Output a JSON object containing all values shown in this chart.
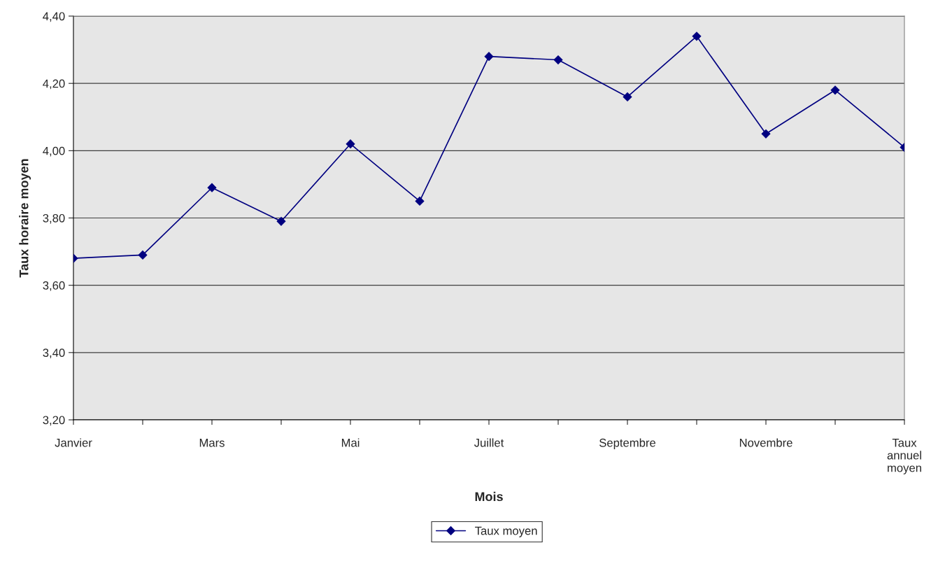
{
  "chart_data": {
    "type": "line",
    "xlabel": "Mois",
    "ylabel": "Taux horaire moyen",
    "categories": [
      "Janvier",
      null,
      "Mars",
      null,
      "Mai",
      null,
      "Juillet",
      null,
      "Septembre",
      null,
      "Novembre",
      null,
      "Taux\nannuel\nmoyen"
    ],
    "series": [
      {
        "name": "Taux moyen",
        "color": "#000080",
        "values": [
          3.68,
          3.69,
          3.89,
          3.79,
          4.02,
          3.85,
          4.28,
          4.27,
          4.16,
          4.34,
          4.05,
          4.18,
          4.01
        ]
      }
    ],
    "ylim": [
      3.2,
      4.4
    ],
    "yticks": [
      {
        "value": 3.2,
        "label": "3,20"
      },
      {
        "value": 3.4,
        "label": "3,40"
      },
      {
        "value": 3.6,
        "label": "3,60"
      },
      {
        "value": 3.8,
        "label": "3,80"
      },
      {
        "value": 4.0,
        "label": "4,00"
      },
      {
        "value": 4.2,
        "label": "4,20"
      },
      {
        "value": 4.4,
        "label": "4,40"
      }
    ],
    "grid": "y",
    "legend": "bottom",
    "marker": "diamond",
    "line_style": "solid"
  }
}
